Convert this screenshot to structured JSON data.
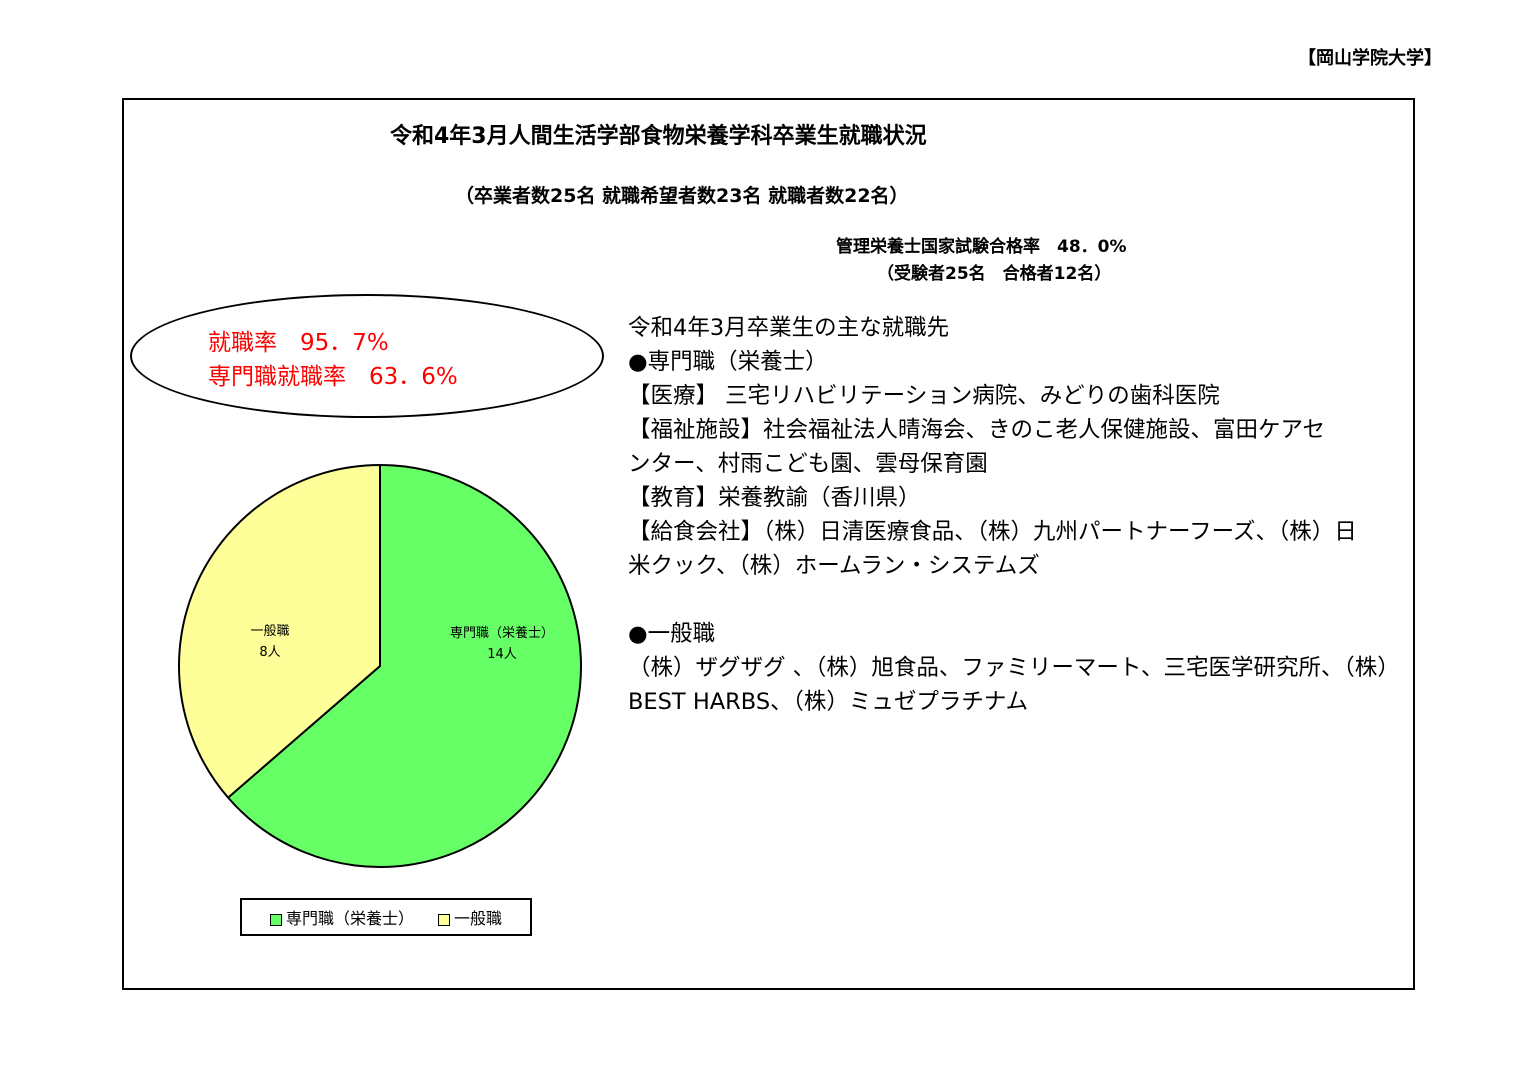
{
  "header": {
    "university": "【岡山学院大学】"
  },
  "report": {
    "title": "令和4年3月人間生活学部食物栄養学科卒業生就職状況",
    "subtitle": "（卒業者数25名 就職希望者数23名 就職者数22名）",
    "exam_rate": "管理栄養士国家試験合格率　48．0%",
    "exam_detail": "（受験者25名　合格者12名）",
    "employment_rate": "就職率　95．7%",
    "specialist_rate": "専門職就職率　63．6%"
  },
  "destinations": {
    "lines": [
      "令和4年3月卒業生の主な就職先",
      "●専門職（栄養士）",
      "【医療】 三宅リハビリテーション病院、みどりの歯科医院",
      "【福祉施設】社会福祉法人晴海会、きのこ老人保健施設、富田ケアセ",
      "ンター、村雨こども園、雲母保育園",
      "【教育】栄養教諭（香川県）",
      "【給食会社】（株）日清医療食品、（株）九州パートナーフーズ、（株）日",
      "米クック、（株）ホームラン・システムズ",
      "",
      "●一般職",
      "（株）ザグザグ 、（株）旭食品、ファミリーマート、三宅医学研究所、（株）",
      "BEST HARBS、（株）ミュゼプラチナム"
    ]
  },
  "chart_data": {
    "type": "pie",
    "categories": [
      "専門職（栄養士）",
      "一般職"
    ],
    "values": [
      14,
      8
    ],
    "data_labels": [
      [
        "専門職（栄養士）",
        "14人"
      ],
      [
        "一般職",
        "8人"
      ]
    ],
    "colors": [
      "#66ff66",
      "#ffff99"
    ],
    "legend": [
      "専門職（栄養士）",
      "一般職"
    ],
    "legend_position": "bottom"
  }
}
